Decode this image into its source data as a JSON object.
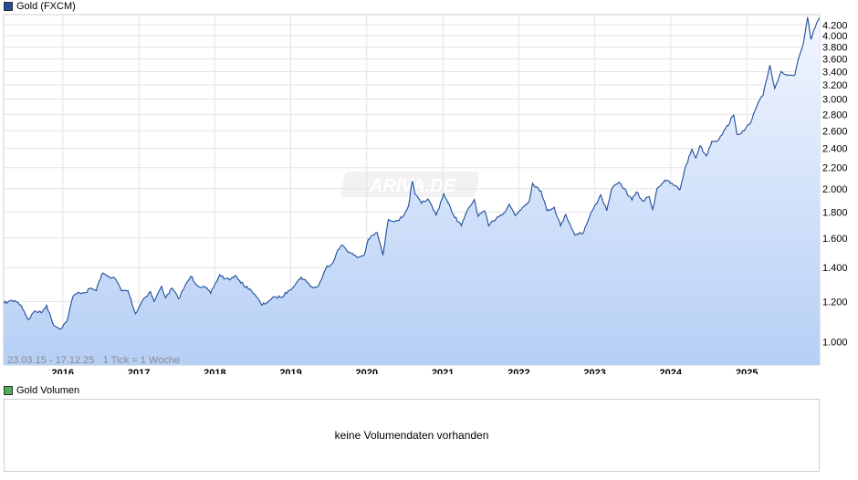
{
  "main_legend": {
    "label": "Gold (FXCM)",
    "color": "#1f4e9c"
  },
  "volume_legend": {
    "label": "Gold Volumen",
    "color": "#4caf50"
  },
  "range_info": "23.03.15 - 17.12.25   1 Tick = 1 Woche",
  "watermark": "ARIVA.DE",
  "volume_message": "keine Volumendaten vorhanden",
  "chart_data": {
    "type": "area",
    "title": "Gold (FXCM)",
    "x_ticks": [
      "2016",
      "2017",
      "2018",
      "2019",
      "2020",
      "2021",
      "2022",
      "2023",
      "2024",
      "2025"
    ],
    "y_ticks": [
      1000,
      1200,
      1400,
      1600,
      1800,
      2000,
      2200,
      2400,
      2600,
      2800,
      3000,
      3200,
      3400,
      3600,
      3800,
      4000,
      4200
    ],
    "y_tick_labels": [
      "1.000",
      "1.200",
      "1.400",
      "1.600",
      "1.800",
      "2.000",
      "2.200",
      "2.400",
      "2.600",
      "2.800",
      "3.000",
      "3.200",
      "3.400",
      "3.600",
      "3.800",
      "4.000",
      "4.200"
    ],
    "y_scale": "log",
    "ylim": [
      900,
      4400
    ],
    "grid": true,
    "line_color": "#1f4e9c",
    "fill_color_top": "#f2f6ff",
    "fill_color_bottom": "#b6cff5",
    "series": [
      {
        "name": "Gold (FXCM)",
        "points": [
          [
            "2015-03-23",
            1190
          ],
          [
            "2015-04-15",
            1200
          ],
          [
            "2015-05-15",
            1205
          ],
          [
            "2015-06-15",
            1180
          ],
          [
            "2015-07-20",
            1105
          ],
          [
            "2015-08-20",
            1150
          ],
          [
            "2015-09-20",
            1140
          ],
          [
            "2015-10-15",
            1180
          ],
          [
            "2015-11-15",
            1085
          ],
          [
            "2015-12-17",
            1060
          ],
          [
            "2016-01-20",
            1095
          ],
          [
            "2016-02-20",
            1230
          ],
          [
            "2016-03-20",
            1250
          ],
          [
            "2016-04-20",
            1250
          ],
          [
            "2016-05-15",
            1275
          ],
          [
            "2016-06-10",
            1260
          ],
          [
            "2016-06-24",
            1315
          ],
          [
            "2016-07-07",
            1360
          ],
          [
            "2016-08-10",
            1345
          ],
          [
            "2016-09-10",
            1330
          ],
          [
            "2016-10-10",
            1260
          ],
          [
            "2016-11-10",
            1260
          ],
          [
            "2016-12-15",
            1135
          ],
          [
            "2017-01-20",
            1210
          ],
          [
            "2017-02-25",
            1255
          ],
          [
            "2017-03-15",
            1200
          ],
          [
            "2017-04-20",
            1285
          ],
          [
            "2017-05-10",
            1220
          ],
          [
            "2017-06-10",
            1275
          ],
          [
            "2017-07-10",
            1215
          ],
          [
            "2017-08-10",
            1285
          ],
          [
            "2017-09-08",
            1345
          ],
          [
            "2017-10-10",
            1290
          ],
          [
            "2017-11-15",
            1280
          ],
          [
            "2017-12-12",
            1245
          ],
          [
            "2018-01-25",
            1355
          ],
          [
            "2018-02-20",
            1330
          ],
          [
            "2018-03-20",
            1330
          ],
          [
            "2018-04-15",
            1345
          ],
          [
            "2018-05-20",
            1290
          ],
          [
            "2018-06-20",
            1270
          ],
          [
            "2018-07-20",
            1225
          ],
          [
            "2018-08-16",
            1180
          ],
          [
            "2018-09-20",
            1205
          ],
          [
            "2018-10-20",
            1225
          ],
          [
            "2018-11-20",
            1225
          ],
          [
            "2018-12-20",
            1260
          ],
          [
            "2019-01-25",
            1300
          ],
          [
            "2019-02-20",
            1340
          ],
          [
            "2019-03-20",
            1310
          ],
          [
            "2019-04-20",
            1275
          ],
          [
            "2019-05-15",
            1290
          ],
          [
            "2019-06-25",
            1410
          ],
          [
            "2019-07-20",
            1425
          ],
          [
            "2019-08-10",
            1500
          ],
          [
            "2019-09-05",
            1550
          ],
          [
            "2019-10-10",
            1500
          ],
          [
            "2019-11-15",
            1465
          ],
          [
            "2019-12-20",
            1480
          ],
          [
            "2020-01-08",
            1590
          ],
          [
            "2020-02-20",
            1640
          ],
          [
            "2020-03-19",
            1480
          ],
          [
            "2020-04-14",
            1740
          ],
          [
            "2020-05-20",
            1730
          ],
          [
            "2020-06-20",
            1755
          ],
          [
            "2020-07-20",
            1850
          ],
          [
            "2020-08-07",
            2070
          ],
          [
            "2020-08-20",
            1950
          ],
          [
            "2020-09-20",
            1870
          ],
          [
            "2020-10-20",
            1910
          ],
          [
            "2020-11-30",
            1775
          ],
          [
            "2021-01-05",
            1955
          ],
          [
            "2021-02-20",
            1780
          ],
          [
            "2021-03-31",
            1690
          ],
          [
            "2021-04-20",
            1780
          ],
          [
            "2021-06-01",
            1905
          ],
          [
            "2021-06-20",
            1765
          ],
          [
            "2021-07-20",
            1810
          ],
          [
            "2021-08-09",
            1690
          ],
          [
            "2021-09-20",
            1760
          ],
          [
            "2021-10-20",
            1790
          ],
          [
            "2021-11-16",
            1865
          ],
          [
            "2021-12-15",
            1770
          ],
          [
            "2022-01-20",
            1840
          ],
          [
            "2022-02-20",
            1890
          ],
          [
            "2022-03-08",
            2050
          ],
          [
            "2022-04-18",
            1980
          ],
          [
            "2022-05-16",
            1810
          ],
          [
            "2022-06-20",
            1840
          ],
          [
            "2022-07-21",
            1690
          ],
          [
            "2022-08-15",
            1780
          ],
          [
            "2022-09-28",
            1620
          ],
          [
            "2022-10-20",
            1640
          ],
          [
            "2022-11-03",
            1630
          ],
          [
            "2022-12-20",
            1810
          ],
          [
            "2023-01-30",
            1945
          ],
          [
            "2023-02-28",
            1810
          ],
          [
            "2023-03-20",
            1980
          ],
          [
            "2023-04-13",
            2040
          ],
          [
            "2023-05-04",
            2050
          ],
          [
            "2023-06-29",
            1900
          ],
          [
            "2023-07-20",
            1970
          ],
          [
            "2023-08-20",
            1890
          ],
          [
            "2023-09-20",
            1930
          ],
          [
            "2023-10-06",
            1820
          ],
          [
            "2023-10-27",
            2000
          ],
          [
            "2023-12-04",
            2080
          ],
          [
            "2024-01-20",
            2030
          ],
          [
            "2024-02-14",
            1990
          ],
          [
            "2024-03-08",
            2180
          ],
          [
            "2024-04-12",
            2390
          ],
          [
            "2024-05-01",
            2300
          ],
          [
            "2024-05-20",
            2430
          ],
          [
            "2024-06-20",
            2320
          ],
          [
            "2024-07-17",
            2480
          ],
          [
            "2024-08-20",
            2500
          ],
          [
            "2024-09-20",
            2620
          ],
          [
            "2024-10-30",
            2790
          ],
          [
            "2024-11-14",
            2560
          ],
          [
            "2024-12-20",
            2600
          ],
          [
            "2025-01-20",
            2700
          ],
          [
            "2025-02-24",
            2950
          ],
          [
            "2025-03-20",
            3050
          ],
          [
            "2025-04-22",
            3500
          ],
          [
            "2025-05-15",
            3150
          ],
          [
            "2025-06-15",
            3400
          ],
          [
            "2025-07-20",
            3350
          ],
          [
            "2025-08-20",
            3350
          ],
          [
            "2025-09-10",
            3650
          ],
          [
            "2025-10-01",
            3880
          ],
          [
            "2025-10-20",
            4350
          ],
          [
            "2025-11-05",
            3930
          ],
          [
            "2025-11-25",
            4150
          ],
          [
            "2025-12-17",
            4330
          ]
        ]
      }
    ]
  }
}
